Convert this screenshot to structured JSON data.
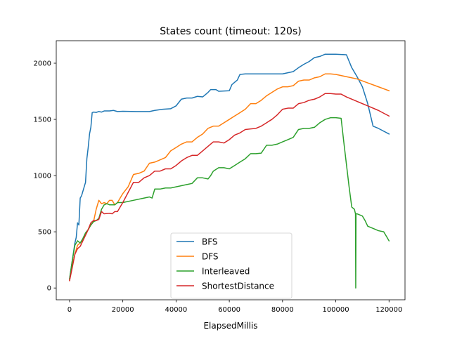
{
  "chart_data": {
    "type": "line",
    "title": "States count (timeout: 120s)",
    "xlabel": "ElapsedMillis",
    "ylabel": "",
    "xlim": [
      -5000,
      126000
    ],
    "ylim": [
      -105,
      2200
    ],
    "xticks": [
      0,
      20000,
      40000,
      60000,
      80000,
      100000,
      120000
    ],
    "yticks": [
      0,
      500,
      1000,
      1500,
      2000
    ],
    "legend_position": "lower center",
    "grid": false,
    "series": [
      {
        "name": "BFS",
        "color": "#1f77b4",
        "points": [
          [
            0,
            80
          ],
          [
            1000,
            240
          ],
          [
            2000,
            400
          ],
          [
            2500,
            450
          ],
          [
            3000,
            580
          ],
          [
            3500,
            560
          ],
          [
            4000,
            800
          ],
          [
            4500,
            820
          ],
          [
            5000,
            860
          ],
          [
            6000,
            940
          ],
          [
            6500,
            1150
          ],
          [
            7000,
            1250
          ],
          [
            7500,
            1370
          ],
          [
            8000,
            1430
          ],
          [
            8500,
            1560
          ],
          [
            9000,
            1565
          ],
          [
            10000,
            1562
          ],
          [
            11000,
            1570
          ],
          [
            12000,
            1565
          ],
          [
            13000,
            1575
          ],
          [
            15000,
            1575
          ],
          [
            16500,
            1580
          ],
          [
            18000,
            1570
          ],
          [
            20000,
            1572
          ],
          [
            25000,
            1570
          ],
          [
            30000,
            1570
          ],
          [
            32000,
            1580
          ],
          [
            35000,
            1590
          ],
          [
            38000,
            1595
          ],
          [
            40000,
            1620
          ],
          [
            42000,
            1680
          ],
          [
            44000,
            1690
          ],
          [
            46000,
            1690
          ],
          [
            48000,
            1705
          ],
          [
            50000,
            1700
          ],
          [
            52000,
            1740
          ],
          [
            53000,
            1765
          ],
          [
            55000,
            1765
          ],
          [
            56000,
            1750
          ],
          [
            60000,
            1755
          ],
          [
            61000,
            1810
          ],
          [
            63000,
            1850
          ],
          [
            64000,
            1900
          ],
          [
            66000,
            1905
          ],
          [
            70000,
            1905
          ],
          [
            75000,
            1905
          ],
          [
            80000,
            1905
          ],
          [
            82000,
            1915
          ],
          [
            84000,
            1925
          ],
          [
            86000,
            1960
          ],
          [
            88000,
            1990
          ],
          [
            90000,
            2015
          ],
          [
            92000,
            2050
          ],
          [
            94000,
            2060
          ],
          [
            96000,
            2080
          ],
          [
            98000,
            2080
          ],
          [
            100000,
            2080
          ],
          [
            104000,
            2075
          ],
          [
            106000,
            1960
          ],
          [
            108000,
            1880
          ],
          [
            110000,
            1790
          ],
          [
            112000,
            1640
          ],
          [
            114000,
            1440
          ],
          [
            116000,
            1420
          ],
          [
            120000,
            1370
          ]
        ]
      },
      {
        "name": "DFS",
        "color": "#ff7f0e",
        "points": [
          [
            0,
            70
          ],
          [
            1000,
            200
          ],
          [
            2000,
            300
          ],
          [
            3000,
            380
          ],
          [
            4000,
            400
          ],
          [
            5000,
            430
          ],
          [
            6000,
            470
          ],
          [
            7000,
            520
          ],
          [
            8000,
            560
          ],
          [
            9000,
            590
          ],
          [
            10000,
            700
          ],
          [
            11000,
            780
          ],
          [
            12000,
            750
          ],
          [
            13000,
            760
          ],
          [
            14000,
            750
          ],
          [
            15000,
            780
          ],
          [
            16000,
            780
          ],
          [
            17000,
            740
          ],
          [
            18000,
            760
          ],
          [
            20000,
            840
          ],
          [
            22000,
            900
          ],
          [
            24000,
            1010
          ],
          [
            26000,
            1020
          ],
          [
            28000,
            1040
          ],
          [
            30000,
            1110
          ],
          [
            32000,
            1120
          ],
          [
            34000,
            1140
          ],
          [
            36000,
            1160
          ],
          [
            38000,
            1220
          ],
          [
            40000,
            1250
          ],
          [
            42000,
            1280
          ],
          [
            44000,
            1300
          ],
          [
            46000,
            1300
          ],
          [
            48000,
            1340
          ],
          [
            50000,
            1370
          ],
          [
            52000,
            1420
          ],
          [
            54000,
            1440
          ],
          [
            56000,
            1440
          ],
          [
            58000,
            1470
          ],
          [
            60000,
            1500
          ],
          [
            62000,
            1530
          ],
          [
            64000,
            1560
          ],
          [
            66000,
            1590
          ],
          [
            68000,
            1640
          ],
          [
            70000,
            1640
          ],
          [
            72000,
            1670
          ],
          [
            74000,
            1710
          ],
          [
            76000,
            1740
          ],
          [
            78000,
            1770
          ],
          [
            80000,
            1790
          ],
          [
            82000,
            1790
          ],
          [
            84000,
            1800
          ],
          [
            86000,
            1840
          ],
          [
            88000,
            1850
          ],
          [
            90000,
            1850
          ],
          [
            92000,
            1870
          ],
          [
            94000,
            1880
          ],
          [
            96000,
            1905
          ],
          [
            98000,
            1905
          ],
          [
            100000,
            1900
          ],
          [
            104000,
            1880
          ],
          [
            108000,
            1860
          ],
          [
            112000,
            1825
          ],
          [
            116000,
            1790
          ],
          [
            120000,
            1755
          ]
        ]
      },
      {
        "name": "Interleaved",
        "color": "#2ca02c",
        "points": [
          [
            0,
            80
          ],
          [
            1000,
            240
          ],
          [
            2000,
            380
          ],
          [
            3000,
            420
          ],
          [
            4000,
            400
          ],
          [
            5000,
            440
          ],
          [
            6000,
            490
          ],
          [
            7000,
            520
          ],
          [
            8000,
            560
          ],
          [
            9000,
            590
          ],
          [
            10000,
            600
          ],
          [
            11000,
            620
          ],
          [
            12000,
            700
          ],
          [
            13000,
            740
          ],
          [
            14000,
            750
          ],
          [
            15000,
            740
          ],
          [
            17000,
            740
          ],
          [
            18000,
            760
          ],
          [
            20000,
            760
          ],
          [
            24000,
            780
          ],
          [
            28000,
            800
          ],
          [
            30000,
            810
          ],
          [
            31000,
            800
          ],
          [
            32000,
            880
          ],
          [
            34000,
            880
          ],
          [
            36000,
            890
          ],
          [
            38000,
            890
          ],
          [
            40000,
            900
          ],
          [
            42000,
            910
          ],
          [
            44000,
            920
          ],
          [
            46000,
            930
          ],
          [
            48000,
            980
          ],
          [
            50000,
            980
          ],
          [
            52000,
            970
          ],
          [
            53000,
            1000
          ],
          [
            54000,
            1040
          ],
          [
            56000,
            1070
          ],
          [
            58000,
            1070
          ],
          [
            60000,
            1060
          ],
          [
            62000,
            1090
          ],
          [
            64000,
            1120
          ],
          [
            66000,
            1150
          ],
          [
            68000,
            1195
          ],
          [
            70000,
            1195
          ],
          [
            72000,
            1200
          ],
          [
            74000,
            1270
          ],
          [
            76000,
            1270
          ],
          [
            78000,
            1280
          ],
          [
            80000,
            1300
          ],
          [
            82000,
            1320
          ],
          [
            84000,
            1340
          ],
          [
            86000,
            1410
          ],
          [
            88000,
            1420
          ],
          [
            90000,
            1420
          ],
          [
            92000,
            1430
          ],
          [
            94000,
            1470
          ],
          [
            96000,
            1500
          ],
          [
            98000,
            1515
          ],
          [
            100000,
            1515
          ],
          [
            102000,
            1510
          ],
          [
            103000,
            1300
          ],
          [
            104000,
            1100
          ],
          [
            105000,
            900
          ],
          [
            106000,
            720
          ],
          [
            107000,
            700
          ],
          [
            107400,
            660
          ],
          [
            107500,
            0
          ],
          [
            107600,
            660
          ],
          [
            108000,
            660
          ],
          [
            110000,
            640
          ],
          [
            111000,
            600
          ],
          [
            112000,
            550
          ],
          [
            114000,
            530
          ],
          [
            116000,
            510
          ],
          [
            118000,
            500
          ],
          [
            119000,
            460
          ],
          [
            120000,
            420
          ]
        ]
      },
      {
        "name": "ShortestDistance",
        "color": "#d62728",
        "points": [
          [
            0,
            65
          ],
          [
            1000,
            180
          ],
          [
            2000,
            300
          ],
          [
            3000,
            350
          ],
          [
            4000,
            370
          ],
          [
            5000,
            420
          ],
          [
            6000,
            470
          ],
          [
            7000,
            520
          ],
          [
            8000,
            580
          ],
          [
            9000,
            600
          ],
          [
            10000,
            600
          ],
          [
            11000,
            610
          ],
          [
            12000,
            680
          ],
          [
            13000,
            660
          ],
          [
            15000,
            665
          ],
          [
            16000,
            660
          ],
          [
            17000,
            680
          ],
          [
            18000,
            680
          ],
          [
            19000,
            720
          ],
          [
            20000,
            760
          ],
          [
            22000,
            850
          ],
          [
            24000,
            940
          ],
          [
            26000,
            940
          ],
          [
            28000,
            980
          ],
          [
            30000,
            1000
          ],
          [
            32000,
            1040
          ],
          [
            34000,
            1040
          ],
          [
            36000,
            1060
          ],
          [
            38000,
            1060
          ],
          [
            40000,
            1090
          ],
          [
            42000,
            1130
          ],
          [
            44000,
            1160
          ],
          [
            46000,
            1180
          ],
          [
            48000,
            1180
          ],
          [
            50000,
            1220
          ],
          [
            52000,
            1260
          ],
          [
            54000,
            1300
          ],
          [
            56000,
            1300
          ],
          [
            58000,
            1290
          ],
          [
            60000,
            1320
          ],
          [
            62000,
            1360
          ],
          [
            64000,
            1380
          ],
          [
            66000,
            1410
          ],
          [
            68000,
            1415
          ],
          [
            70000,
            1420
          ],
          [
            72000,
            1440
          ],
          [
            74000,
            1470
          ],
          [
            76000,
            1500
          ],
          [
            78000,
            1540
          ],
          [
            80000,
            1590
          ],
          [
            82000,
            1600
          ],
          [
            84000,
            1600
          ],
          [
            86000,
            1640
          ],
          [
            88000,
            1650
          ],
          [
            90000,
            1670
          ],
          [
            92000,
            1680
          ],
          [
            94000,
            1700
          ],
          [
            96000,
            1730
          ],
          [
            98000,
            1730
          ],
          [
            100000,
            1725
          ],
          [
            102000,
            1725
          ],
          [
            104000,
            1700
          ],
          [
            108000,
            1660
          ],
          [
            112000,
            1620
          ],
          [
            116000,
            1580
          ],
          [
            120000,
            1530
          ]
        ]
      }
    ]
  }
}
